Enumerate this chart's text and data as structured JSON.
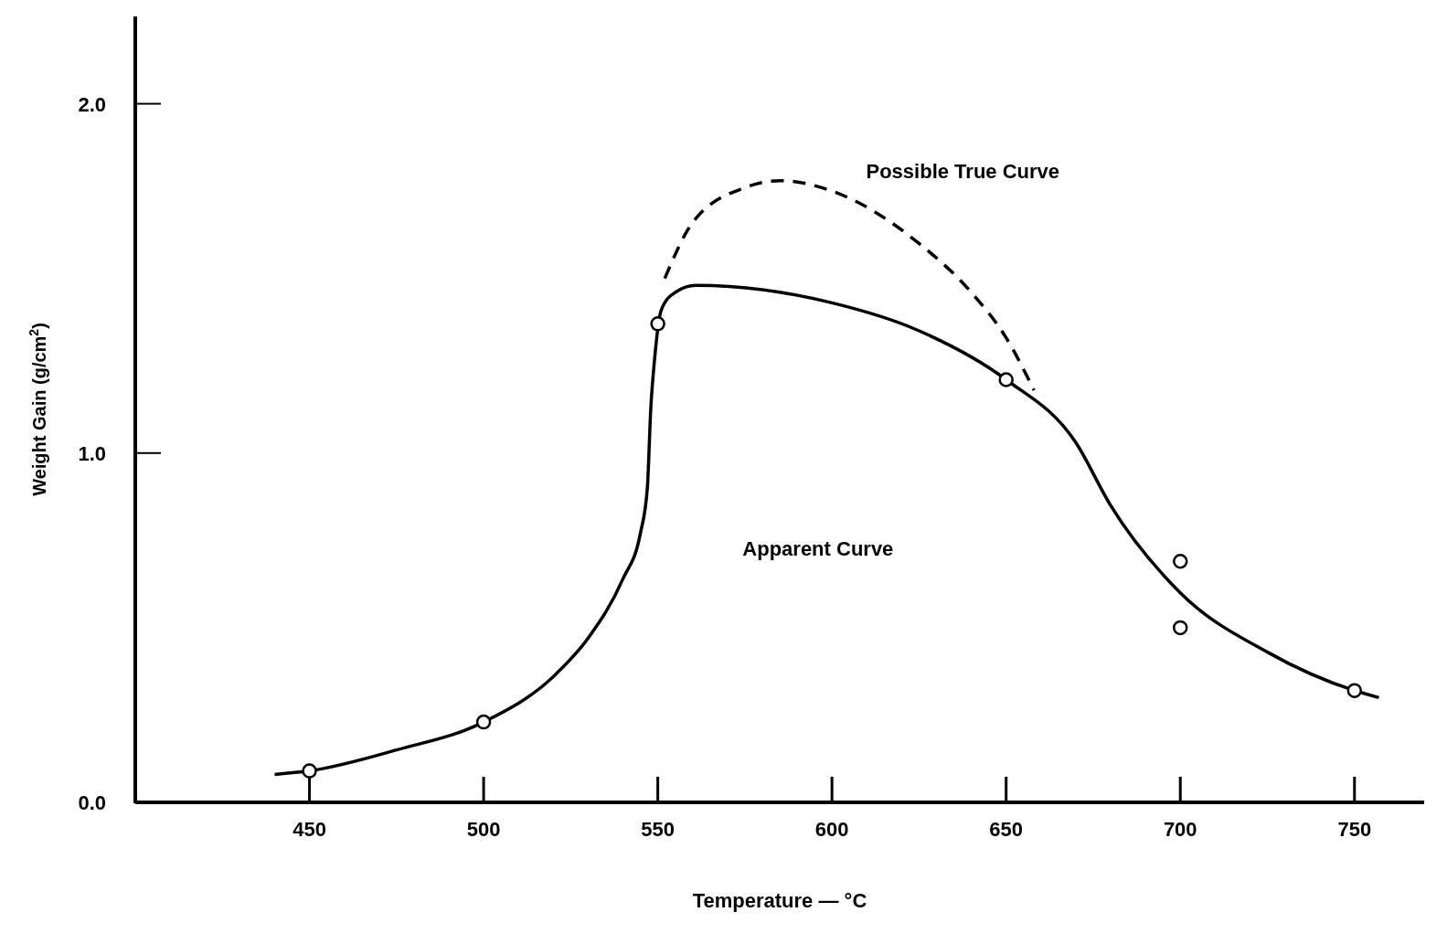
{
  "chart_data": {
    "type": "line",
    "xlabel": "Temperature — °C",
    "ylabel": "Weight Gain (g/cm$^{2}$)",
    "xlim": [
      400,
      770
    ],
    "ylim": [
      0,
      2.25
    ],
    "xticks": [
      450,
      500,
      550,
      600,
      650,
      700,
      750
    ],
    "yticks": [
      {
        "value": 0,
        "label": "0.0"
      },
      {
        "value": 1,
        "label": "1.0"
      },
      {
        "value": 2,
        "label": "2.0"
      }
    ],
    "grid": false,
    "series": [
      {
        "type": "scatter",
        "color": "#000000",
        "marker": "circle",
        "x": [
          450,
          500,
          550,
          650,
          700,
          700,
          750
        ],
        "values": [
          0.09,
          0.23,
          1.37,
          1.21,
          0.69,
          0.5,
          0.32
        ]
      },
      {
        "color": "#000000",
        "line_style": "solid",
        "marker": "none",
        "x": [
          440,
          450,
          475,
          500,
          520,
          530,
          540,
          545,
          547,
          548,
          549,
          551,
          555,
          561,
          600,
          625,
          650,
          670,
          680,
          700,
          725,
          750,
          757
        ],
        "values": [
          0.08,
          0.09,
          0.15,
          0.23,
          0.36,
          0.47,
          0.64,
          0.77,
          0.9,
          1.13,
          1.26,
          1.41,
          1.46,
          1.48,
          1.43,
          1.35,
          1.21,
          1.03,
          0.85,
          0.6,
          0.43,
          0.32,
          0.3
        ]
      },
      {
        "color": "#000000",
        "line_style": "dashed",
        "marker": "none",
        "x": [
          552,
          560,
          575,
          585,
          600,
          625,
          640,
          650,
          658
        ],
        "values": [
          1.5,
          1.66,
          1.76,
          1.78,
          1.75,
          1.6,
          1.46,
          1.33,
          1.18
        ]
      }
    ],
    "annotations": [
      "Possible True Curve",
      "Apparent Curve"
    ]
  }
}
